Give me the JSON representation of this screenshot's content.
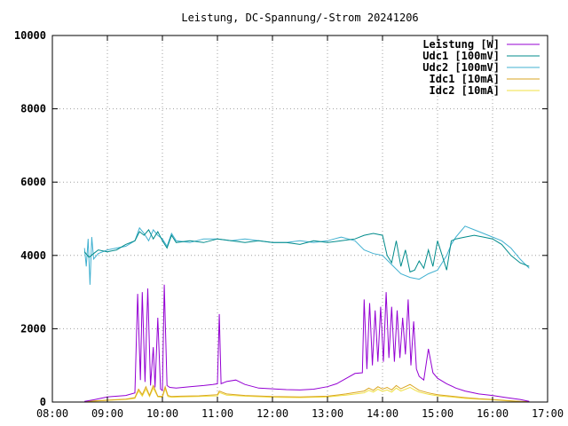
{
  "chart_data": {
    "type": "line",
    "title": "Leistung, DC-Spannung/-Strom 20241206",
    "xlabel": "",
    "ylabel": "",
    "xlim": [
      "08:00",
      "17:00"
    ],
    "ylim": [
      0,
      10000
    ],
    "x_ticks": [
      "08:00",
      "09:00",
      "10:00",
      "11:00",
      "12:00",
      "13:00",
      "14:00",
      "15:00",
      "16:00",
      "17:00"
    ],
    "y_ticks": [
      "0",
      "2000",
      "4000",
      "6000",
      "8000",
      "10000"
    ],
    "grid": true,
    "legend_position": "top-right",
    "series": [
      {
        "name": "Leistung [W]",
        "color": "#9400d3",
        "x": [
          "08:35",
          "08:45",
          "09:00",
          "09:20",
          "09:30",
          "09:33",
          "09:36",
          "09:38",
          "09:41",
          "09:44",
          "09:47",
          "09:50",
          "09:52",
          "09:55",
          "09:58",
          "10:00",
          "10:02",
          "10:05",
          "10:08",
          "10:15",
          "10:30",
          "10:45",
          "10:55",
          "11:00",
          "11:02",
          "11:04",
          "11:10",
          "11:20",
          "11:30",
          "11:45",
          "12:00",
          "12:15",
          "12:30",
          "12:45",
          "13:00",
          "13:10",
          "13:20",
          "13:30",
          "13:38",
          "13:40",
          "13:43",
          "13:46",
          "13:49",
          "13:52",
          "13:55",
          "13:58",
          "14:01",
          "14:04",
          "14:07",
          "14:10",
          "14:13",
          "14:16",
          "14:19",
          "14:22",
          "14:25",
          "14:28",
          "14:31",
          "14:34",
          "14:37",
          "14:40",
          "14:45",
          "14:50",
          "14:55",
          "15:00",
          "15:10",
          "15:20",
          "15:30",
          "15:45",
          "16:00",
          "16:15",
          "16:30",
          "16:40"
        ],
        "values": [
          20,
          60,
          140,
          180,
          250,
          2950,
          600,
          3000,
          550,
          3100,
          450,
          1500,
          400,
          2300,
          350,
          320,
          3200,
          450,
          400,
          380,
          420,
          450,
          480,
          500,
          2400,
          500,
          560,
          600,
          480,
          380,
          360,
          340,
          330,
          350,
          420,
          500,
          640,
          780,
          800,
          2800,
          900,
          2700,
          1000,
          2500,
          1100,
          2600,
          1100,
          3000,
          1200,
          2600,
          1100,
          2500,
          1200,
          2300,
          1300,
          2800,
          1000,
          2200,
          900,
          700,
          600,
          1450,
          800,
          650,
          500,
          380,
          300,
          220,
          180,
          120,
          70,
          20
        ]
      },
      {
        "name": "Udc1 [100mV]",
        "color": "#008b8b",
        "x": [
          "08:35",
          "08:40",
          "08:45",
          "08:50",
          "09:00",
          "09:10",
          "09:20",
          "09:30",
          "09:35",
          "09:40",
          "09:45",
          "09:50",
          "09:55",
          "10:00",
          "10:05",
          "10:10",
          "10:15",
          "10:30",
          "10:45",
          "11:00",
          "11:15",
          "11:30",
          "11:45",
          "12:00",
          "12:15",
          "12:30",
          "12:45",
          "13:00",
          "13:15",
          "13:30",
          "13:40",
          "13:50",
          "14:00",
          "14:05",
          "14:10",
          "14:15",
          "14:20",
          "14:25",
          "14:30",
          "14:35",
          "14:40",
          "14:45",
          "14:50",
          "14:55",
          "15:00",
          "15:05",
          "15:10",
          "15:15",
          "15:20",
          "15:30",
          "15:40",
          "15:50",
          "16:00",
          "16:10",
          "16:20",
          "16:30",
          "16:40"
        ],
        "values": [
          4100,
          3950,
          4050,
          4150,
          4100,
          4150,
          4300,
          4400,
          4650,
          4550,
          4700,
          4450,
          4650,
          4400,
          4200,
          4550,
          4350,
          4400,
          4350,
          4450,
          4400,
          4350,
          4400,
          4350,
          4350,
          4300,
          4400,
          4350,
          4400,
          4450,
          4550,
          4600,
          4550,
          4000,
          3800,
          4400,
          3700,
          4150,
          3550,
          3600,
          3850,
          3650,
          4150,
          3700,
          4400,
          4000,
          3600,
          4400,
          4450,
          4500,
          4550,
          4500,
          4450,
          4300,
          4000,
          3800,
          3700
        ]
      },
      {
        "name": "Udc2 [100mV]",
        "color": "#40b0d0",
        "x": [
          "08:35",
          "08:37",
          "08:39",
          "08:41",
          "08:43",
          "08:45",
          "08:50",
          "09:00",
          "09:10",
          "09:20",
          "09:30",
          "09:35",
          "09:40",
          "09:45",
          "09:50",
          "09:55",
          "10:00",
          "10:05",
          "10:10",
          "10:15",
          "10:30",
          "10:45",
          "11:00",
          "11:15",
          "11:30",
          "11:45",
          "12:00",
          "12:15",
          "12:30",
          "12:45",
          "13:00",
          "13:15",
          "13:30",
          "13:40",
          "13:50",
          "14:00",
          "14:10",
          "14:20",
          "14:30",
          "14:40",
          "14:50",
          "15:00",
          "15:05",
          "15:10",
          "15:15",
          "15:20",
          "15:25",
          "15:30",
          "15:40",
          "15:50",
          "16:00",
          "16:10",
          "16:20",
          "16:30",
          "16:40"
        ],
        "values": [
          4200,
          3700,
          4450,
          3200,
          4500,
          3900,
          4050,
          4150,
          4200,
          4250,
          4400,
          4750,
          4600,
          4400,
          4700,
          4550,
          4450,
          4250,
          4600,
          4400,
          4350,
          4450,
          4450,
          4400,
          4450,
          4400,
          4350,
          4350,
          4400,
          4350,
          4400,
          4500,
          4400,
          4150,
          4050,
          4000,
          3750,
          3500,
          3400,
          3350,
          3500,
          3600,
          3800,
          4000,
          4300,
          4500,
          4650,
          4800,
          4700,
          4600,
          4500,
          4400,
          4200,
          3900,
          3650
        ]
      },
      {
        "name": "Idc1 [10mA]",
        "color": "#daa520",
        "x": [
          "08:35",
          "08:45",
          "09:00",
          "09:20",
          "09:30",
          "09:34",
          "09:38",
          "09:42",
          "09:46",
          "09:50",
          "09:55",
          "10:00",
          "10:03",
          "10:06",
          "10:10",
          "10:20",
          "10:40",
          "11:00",
          "11:02",
          "11:10",
          "11:30",
          "12:00",
          "12:30",
          "13:00",
          "13:20",
          "13:40",
          "13:45",
          "13:50",
          "13:55",
          "14:00",
          "14:05",
          "14:10",
          "14:15",
          "14:20",
          "14:30",
          "14:35",
          "14:40",
          "14:50",
          "15:00",
          "15:15",
          "15:30",
          "15:45",
          "16:00",
          "16:15",
          "16:30",
          "16:40"
        ],
        "values": [
          10,
          30,
          50,
          80,
          120,
          350,
          200,
          420,
          180,
          450,
          160,
          150,
          420,
          180,
          150,
          160,
          170,
          200,
          300,
          220,
          180,
          150,
          140,
          160,
          220,
          300,
          380,
          320,
          420,
          350,
          400,
          330,
          450,
          360,
          480,
          400,
          320,
          250,
          200,
          160,
          120,
          90,
          70,
          40,
          20,
          10
        ]
      },
      {
        "name": "Idc2 [10mA]",
        "color": "#f0e040",
        "x": [
          "08:35",
          "08:45",
          "09:00",
          "09:20",
          "09:30",
          "09:34",
          "09:38",
          "09:42",
          "09:46",
          "09:50",
          "09:55",
          "10:00",
          "10:03",
          "10:06",
          "10:10",
          "10:20",
          "10:40",
          "11:00",
          "11:02",
          "11:10",
          "11:30",
          "12:00",
          "12:30",
          "13:00",
          "13:20",
          "13:40",
          "13:45",
          "13:50",
          "13:55",
          "14:00",
          "14:05",
          "14:10",
          "14:15",
          "14:20",
          "14:30",
          "14:35",
          "14:40",
          "14:50",
          "15:00",
          "15:15",
          "15:30",
          "15:45",
          "16:00",
          "16:15",
          "16:30",
          "16:40"
        ],
        "values": [
          8,
          25,
          45,
          70,
          100,
          300,
          160,
          350,
          150,
          380,
          140,
          130,
          360,
          150,
          130,
          140,
          150,
          170,
          260,
          190,
          160,
          130,
          120,
          140,
          190,
          250,
          320,
          270,
          350,
          290,
          330,
          270,
          380,
          300,
          400,
          330,
          270,
          210,
          170,
          140,
          100,
          80,
          60,
          35,
          15,
          8
        ]
      }
    ]
  }
}
